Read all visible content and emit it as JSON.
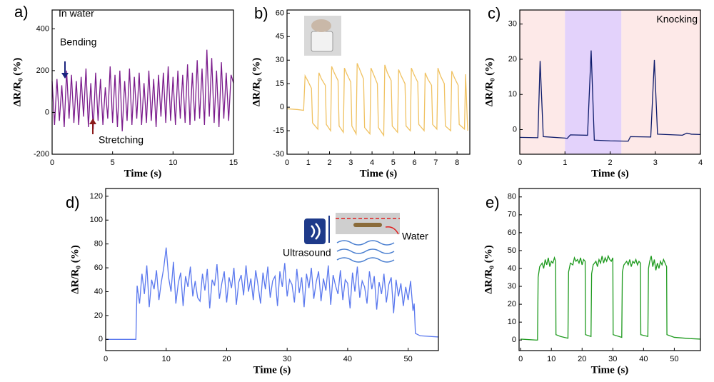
{
  "chart_data": [
    {
      "type": "line",
      "panel_label": "a)",
      "x_label": "Time (s)",
      "y_label": "ΔR/R₀ (%)",
      "color": "#7b1c8c",
      "annotations": [
        "In water",
        "Bending",
        "Stretching"
      ],
      "xlim": [
        0,
        15
      ],
      "ylim": [
        -200,
        490
      ],
      "xticks": [
        0,
        5,
        10,
        15
      ],
      "yticks": [
        -200,
        0,
        200,
        400
      ],
      "x": [
        0,
        0.2,
        0.4,
        0.6,
        0.8,
        1,
        1.2,
        1.4,
        1.6,
        1.8,
        2,
        2.2,
        2.4,
        2.6,
        2.8,
        3,
        3.2,
        3.4,
        3.6,
        3.8,
        4,
        4.2,
        4.4,
        4.6,
        4.8,
        5,
        5.2,
        5.4,
        5.6,
        5.8,
        6,
        6.2,
        6.4,
        6.6,
        6.8,
        7,
        7.2,
        7.4,
        7.6,
        7.8,
        8,
        8.2,
        8.4,
        8.6,
        8.8,
        9,
        9.2,
        9.4,
        9.6,
        9.8,
        10,
        10.2,
        10.4,
        10.6,
        10.8,
        11,
        11.2,
        11.4,
        11.6,
        11.8,
        12,
        12.2,
        12.4,
        12.6,
        12.8,
        13,
        13.2,
        13.4,
        13.6,
        13.8,
        14,
        14.2,
        14.4,
        14.6,
        14.8,
        15
      ],
      "values": [
        150,
        -60,
        160,
        -40,
        130,
        -70,
        200,
        -30,
        180,
        -50,
        150,
        -60,
        170,
        -20,
        210,
        -70,
        140,
        -80,
        190,
        -40,
        160,
        -60,
        120,
        -30,
        220,
        -50,
        180,
        -70,
        200,
        -90,
        150,
        -40,
        210,
        -60,
        170,
        -30,
        190,
        -60,
        140,
        -50,
        200,
        -40,
        160,
        -70,
        180,
        -20,
        190,
        -50,
        220,
        -40,
        170,
        -60,
        200,
        -30,
        180,
        -50,
        230,
        -60,
        190,
        -40,
        250,
        -30,
        210,
        -60,
        300,
        -20,
        260,
        -50,
        200,
        -70,
        240,
        -30,
        190,
        -40,
        180,
        140
      ]
    },
    {
      "type": "line",
      "panel_label": "b)",
      "x_label": "Time (s)",
      "y_label": "ΔR/R₀ (%)",
      "color": "#f0c262",
      "xlim": [
        0,
        8.6
      ],
      "ylim": [
        -30,
        62
      ],
      "xticks": [
        0,
        1,
        2,
        3,
        4,
        5,
        6,
        7,
        8
      ],
      "yticks": [
        -30,
        -15,
        0,
        15,
        30,
        45,
        60
      ],
      "x": [
        0,
        0.5,
        0.78,
        0.85,
        0.97,
        1.15,
        1.2,
        1.45,
        1.5,
        1.62,
        1.8,
        1.85,
        2.05,
        2.1,
        2.22,
        2.4,
        2.45,
        2.65,
        2.7,
        2.82,
        3,
        3.05,
        3.25,
        3.3,
        3.42,
        3.6,
        3.65,
        3.9,
        3.95,
        4.07,
        4.25,
        4.3,
        4.55,
        4.6,
        4.72,
        4.9,
        4.95,
        5.2,
        5.25,
        5.37,
        5.55,
        5.6,
        5.8,
        5.85,
        5.97,
        6.15,
        6.2,
        6.45,
        6.5,
        6.62,
        6.8,
        6.85,
        7.05,
        7.1,
        7.22,
        7.4,
        7.45,
        7.7,
        7.75,
        7.87,
        8.05,
        8.1,
        8.35,
        8.4,
        8.5
      ],
      "values": [
        -1,
        -1.5,
        -2,
        20,
        17,
        12,
        -10,
        -14,
        22,
        18,
        14,
        -11,
        -15,
        26,
        22,
        17,
        -12,
        -16,
        25,
        21,
        16,
        -12,
        -17,
        28,
        24,
        18,
        -13,
        -17,
        25,
        21,
        15,
        -13,
        -18,
        27,
        22,
        17,
        -12,
        -16,
        24,
        20,
        15,
        -12,
        -15,
        25,
        21,
        16,
        -11,
        -15,
        22,
        18,
        14,
        -11,
        -14,
        25,
        20,
        15,
        -12,
        -15,
        23,
        19,
        14,
        -11,
        -14,
        21,
        -15
      ]
    },
    {
      "type": "line",
      "panel_label": "c)",
      "x_label": "Time (s)",
      "y_label": "ΔR/R₀ (%)",
      "color": "#0d1b6b",
      "annotations": [
        "Knocking"
      ],
      "regions": [
        {
          "x": [
            0,
            1
          ],
          "color": "#fde9e8"
        },
        {
          "x": [
            1,
            2.25
          ],
          "color": "#e3d2fb"
        },
        {
          "x": [
            2.25,
            4
          ],
          "color": "#fde9e8"
        }
      ],
      "xlim": [
        0,
        4
      ],
      "ylim": [
        -7,
        34
      ],
      "xticks": [
        0,
        1,
        2,
        3,
        4
      ],
      "yticks": [
        0,
        10,
        20,
        30
      ],
      "x": [
        0,
        0.4,
        0.45,
        0.52,
        1,
        1.05,
        1.12,
        1.5,
        1.58,
        1.65,
        2,
        2.4,
        2.45,
        2.9,
        2.98,
        3.05,
        3.6,
        3.7,
        3.8,
        4
      ],
      "values": [
        -2.2,
        -2.3,
        19.5,
        -2,
        -2.4,
        -2.5,
        -1.5,
        -1.6,
        22.5,
        -3,
        -3.2,
        -3.3,
        -2,
        -2.1,
        19.8,
        -1.3,
        -1.6,
        -1,
        -1.3,
        -1.4
      ]
    },
    {
      "type": "line",
      "panel_label": "d)",
      "x_label": "Time (s)",
      "y_label": "ΔR/R₀ (%)",
      "color": "#5a78ee",
      "annotations": [
        "Ultrasound",
        "Water"
      ],
      "xlim": [
        0,
        55
      ],
      "ylim": [
        -9.4,
        126.5
      ],
      "xticks": [
        0,
        10,
        20,
        30,
        40,
        50
      ],
      "yticks": [
        0,
        20,
        40,
        60,
        80,
        100,
        120
      ],
      "x": [
        0,
        5,
        5.1,
        5.2,
        5.6,
        6,
        6.4,
        6.8,
        7.2,
        7.6,
        8,
        8.4,
        8.8,
        9.2,
        9.6,
        10,
        10.4,
        10.8,
        11.2,
        11.6,
        12,
        12.4,
        12.8,
        13.2,
        13.6,
        14,
        14.4,
        14.8,
        15.2,
        15.6,
        16,
        16.4,
        16.8,
        17.2,
        17.6,
        18,
        18.4,
        18.8,
        19.2,
        19.6,
        20,
        20.4,
        20.8,
        21.2,
        21.6,
        22,
        22.4,
        22.8,
        23.2,
        23.6,
        24,
        24.4,
        24.8,
        25.2,
        25.6,
        26,
        26.4,
        26.8,
        27.2,
        27.6,
        28,
        28.4,
        28.8,
        29.2,
        29.6,
        30,
        30.4,
        30.8,
        31.2,
        31.6,
        32,
        32.4,
        32.8,
        33.2,
        33.6,
        34,
        34.4,
        34.8,
        35.2,
        35.6,
        36,
        36.4,
        36.8,
        37.2,
        37.6,
        38,
        38.4,
        38.8,
        39.2,
        39.6,
        40,
        40.4,
        40.8,
        41.2,
        41.6,
        42,
        42.4,
        42.8,
        43.2,
        43.6,
        44,
        44.4,
        44.8,
        45.2,
        45.6,
        46,
        46.4,
        46.8,
        47.2,
        47.6,
        48,
        48.4,
        48.8,
        49.2,
        49.6,
        50,
        50.4,
        50.8,
        51,
        51.2,
        52,
        55
      ],
      "values": [
        0,
        0,
        25,
        45,
        30,
        55,
        38,
        62,
        27,
        50,
        42,
        58,
        33,
        48,
        60,
        77,
        52,
        40,
        65,
        30,
        47,
        56,
        28,
        53,
        44,
        61,
        36,
        49,
        35,
        32,
        55,
        41,
        59,
        26,
        50,
        45,
        63,
        34,
        47,
        57,
        31,
        52,
        43,
        60,
        29,
        48,
        54,
        37,
        62,
        40,
        51,
        33,
        58,
        45,
        30,
        56,
        42,
        61,
        35,
        49,
        53,
        28,
        57,
        44,
        64,
        36,
        50,
        46,
        31,
        59,
        39,
        52,
        27,
        55,
        43,
        60,
        34,
        48,
        57,
        32,
        51,
        41,
        62,
        29,
        54,
        45,
        38,
        58,
        33,
        50,
        47,
        26,
        56,
        40,
        61,
        35,
        49,
        44,
        30,
        57,
        42,
        53,
        25,
        48,
        38,
        55,
        31,
        46,
        52,
        22,
        50,
        36,
        47,
        28,
        44,
        33,
        49,
        24,
        30,
        5,
        3,
        2
      ]
    },
    {
      "type": "line",
      "panel_label": "e)",
      "x_label": "Time (s)",
      "y_label": "ΔR/R₀ (%)",
      "color": "#1e9a1e",
      "xlim": [
        -0.5,
        58.5
      ],
      "ylim": [
        -5.9,
        84.7
      ],
      "xticks": [
        0,
        10,
        20,
        30,
        40,
        50
      ],
      "yticks": [
        0,
        10,
        20,
        30,
        40,
        50,
        60,
        70,
        80
      ],
      "x": [
        0,
        5,
        5.5,
        5.7,
        6.2,
        7,
        7.5,
        8,
        8.5,
        9,
        9.5,
        10,
        10.5,
        11,
        11.4,
        11.5,
        13,
        15.4,
        15.6,
        16.2,
        17,
        17.5,
        18,
        18.5,
        19,
        19.5,
        20,
        20.5,
        21,
        21.1,
        22.9,
        23.1,
        23.6,
        24.5,
        25,
        25.5,
        26,
        26.5,
        27,
        27.5,
        28,
        28.5,
        29,
        29.5,
        30,
        30.1,
        32.9,
        33.1,
        33.6,
        34.5,
        35,
        35.5,
        36,
        36.5,
        37,
        37.5,
        38,
        38.5,
        39,
        39.1,
        41.4,
        41.6,
        42,
        42.5,
        43,
        43.5,
        44,
        44.5,
        45,
        45.5,
        46,
        46.5,
        47,
        47.5,
        47.6,
        50,
        55,
        58.5
      ],
      "values": [
        0.5,
        0,
        0,
        35,
        41,
        43,
        40,
        45,
        42,
        46,
        41,
        44,
        43,
        46,
        44,
        3,
        2,
        1,
        38,
        43,
        42,
        46,
        44,
        45,
        43,
        46,
        42,
        45,
        44,
        3,
        2,
        37,
        42,
        44,
        41,
        45,
        43,
        47,
        43,
        46,
        44,
        47,
        45,
        44,
        46,
        3,
        1.5,
        38,
        42,
        44,
        42,
        45,
        41,
        44,
        43,
        45,
        42,
        44,
        43,
        3,
        2,
        40,
        44,
        47,
        41,
        45,
        39,
        43,
        40,
        44,
        42,
        45,
        43,
        41,
        3,
        1.5,
        0.8,
        0.5
      ]
    }
  ]
}
